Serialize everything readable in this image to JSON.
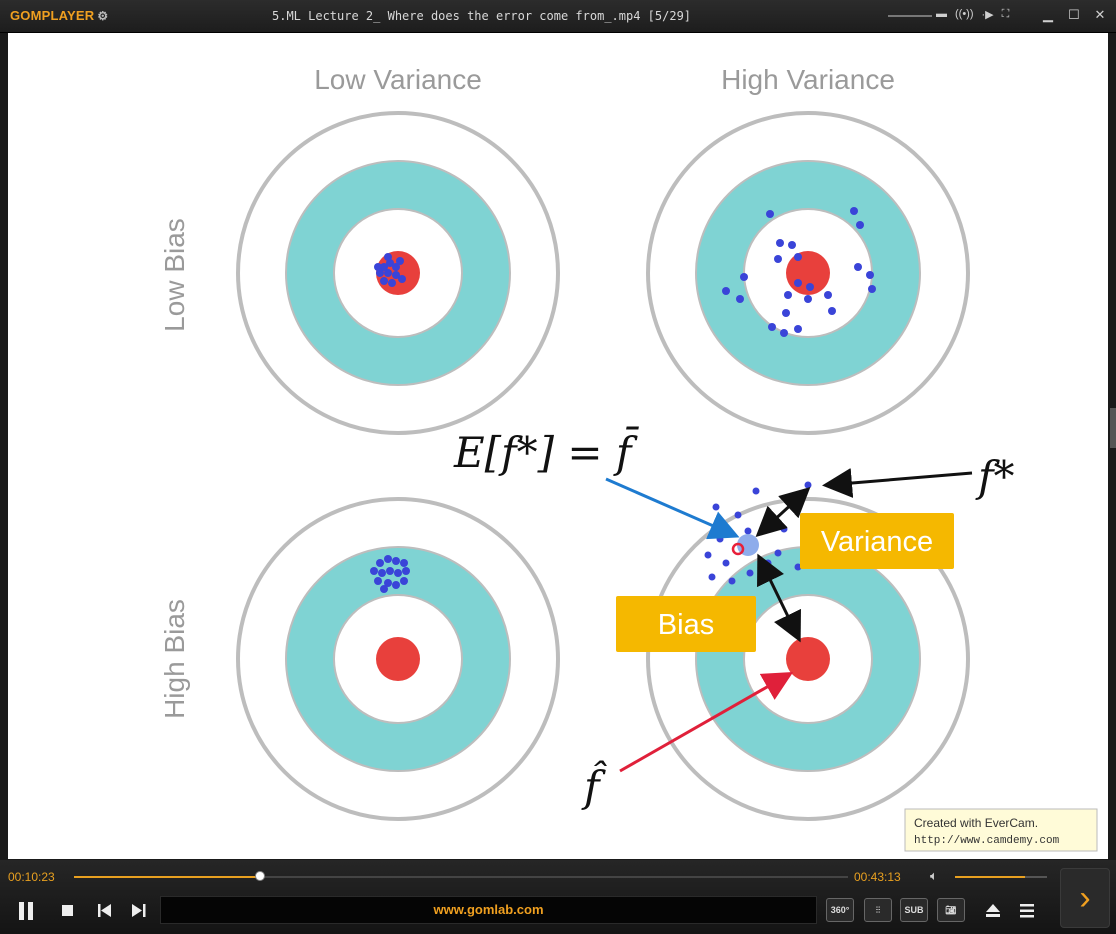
{
  "app": {
    "logo": "GOMPLAYER",
    "title": "5.ML Lecture 2_ Where does the error come from_.mp4  [5/29]"
  },
  "slide": {
    "col_low_variance": "Low Variance",
    "col_high_variance": "High Variance",
    "row_low_bias": "Low Bias",
    "row_high_bias": "High Bias",
    "formula_expectation": "E[f*] = f̄",
    "label_f_star": "f*",
    "label_f_hat": "f̂",
    "label_variance": "Variance",
    "label_bias": "Bias",
    "watermark_line1": "Created with EverCam.",
    "watermark_line2": "http://www.camdemy.com",
    "colors": {
      "ring": "#7fd3d3",
      "bullseye": "#e8403c",
      "dots": "#3a44d8",
      "label_box": "#f5b800"
    }
  },
  "player": {
    "current_time": "00:10:23",
    "total_time": "00:43:13",
    "progress": 0.24,
    "volume": 0.76,
    "url": "www.gomlab.com",
    "tools": {
      "vr": "360°",
      "eq": "EQ",
      "sub": "SUB",
      "capture": "capture"
    }
  }
}
